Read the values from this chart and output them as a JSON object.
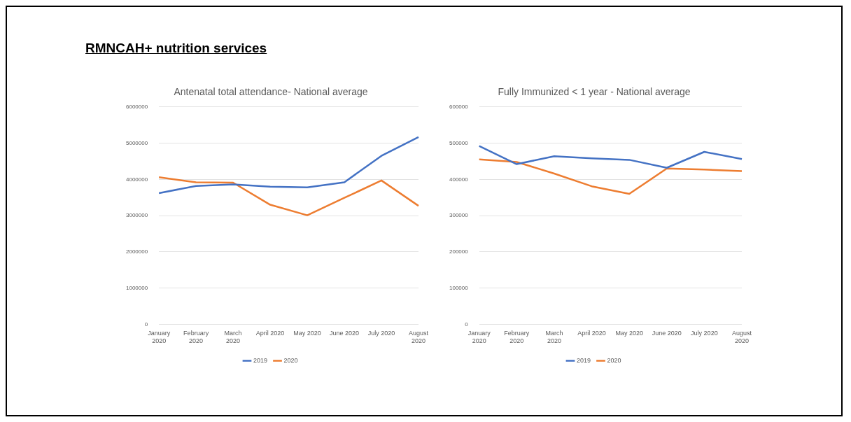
{
  "chart_data": [
    {
      "type": "line",
      "title": "Antenatal total attendance- National average",
      "annotations": [
        "RMNCAH+ nutrition services"
      ],
      "categories": [
        "January 2020",
        "February 2020",
        "March 2020",
        "April 2020",
        "May 2020",
        "June 2020",
        "July 2020",
        "August 2020"
      ],
      "series": [
        {
          "name": "2019",
          "color": "#4472c4",
          "values": [
            3620000,
            3820000,
            3860000,
            3800000,
            3780000,
            3920000,
            4650000,
            5170000
          ]
        },
        {
          "name": "2020",
          "color": "#ed7d31",
          "values": [
            4060000,
            3920000,
            3910000,
            3300000,
            3010000,
            3490000,
            3970000,
            3270000
          ]
        }
      ],
      "ylim": [
        0,
        6000000
      ],
      "yticks": [
        0,
        1000000,
        2000000,
        3000000,
        4000000,
        5000000,
        6000000
      ],
      "grid": "y",
      "legend": "bottom",
      "marker": "none"
    },
    {
      "type": "line",
      "title": "Fully Immunized < 1 year - National average",
      "categories": [
        "January 2020",
        "February 2020",
        "March 2020",
        "April 2020",
        "May 2020",
        "June 2020",
        "July 2020",
        "August 2020"
      ],
      "series": [
        {
          "name": "2019",
          "color": "#4472c4",
          "values": [
            492000,
            442000,
            464000,
            458000,
            454000,
            432000,
            476000,
            456000
          ]
        },
        {
          "name": "2020",
          "color": "#ed7d31",
          "values": [
            455000,
            448000,
            416000,
            381000,
            360000,
            430000,
            427000,
            423000
          ]
        }
      ],
      "ylim": [
        0,
        600000
      ],
      "yticks": [
        0,
        100000,
        200000,
        300000,
        400000,
        500000,
        600000
      ],
      "grid": "y",
      "legend": "bottom",
      "marker": "none"
    }
  ]
}
